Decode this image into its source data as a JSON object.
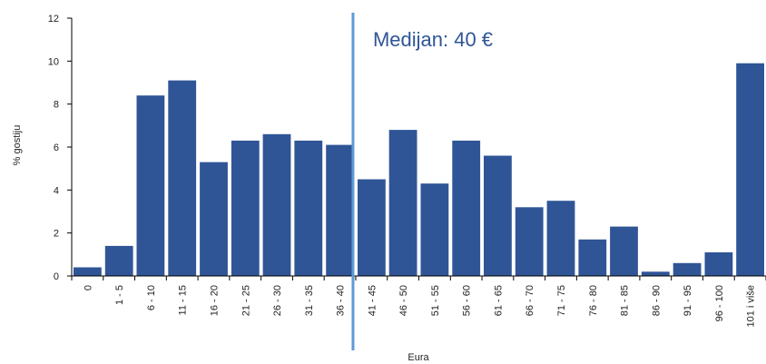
{
  "colors": {
    "bar": "#2f5597",
    "median_line": "#5b9bd5",
    "annotation": "#2f5597",
    "axis": "#000000"
  },
  "chart_data": {
    "type": "bar",
    "title": "",
    "xlabel": "Eura",
    "ylabel": "% gostiju",
    "ylim": [
      0,
      12
    ],
    "yticks": [
      "0",
      "2",
      "4",
      "6",
      "8",
      "10",
      "12"
    ],
    "grid": false,
    "categories": [
      "0",
      "1 - 5",
      "6 - 10",
      "11 - 15",
      "16 - 20",
      "21 - 25",
      "26 - 30",
      "31 - 35",
      "36 - 40",
      "41 - 45",
      "46 - 50",
      "51 - 55",
      "56 - 60",
      "61 - 65",
      "66 - 70",
      "71 - 75",
      "76 - 80",
      "81 - 85",
      "86 - 90",
      "91 - 95",
      "96 - 100",
      "101 i više"
    ],
    "values": [
      0.4,
      1.4,
      8.4,
      9.1,
      5.3,
      6.3,
      6.6,
      6.3,
      6.1,
      4.5,
      6.8,
      4.3,
      6.3,
      5.6,
      3.2,
      3.5,
      1.7,
      2.3,
      0.2,
      0.6,
      1.1,
      9.9
    ],
    "median": {
      "value_eur": 40,
      "label": "Medijan: 40 €",
      "position": "between 36 - 40 and 41 - 45"
    }
  }
}
